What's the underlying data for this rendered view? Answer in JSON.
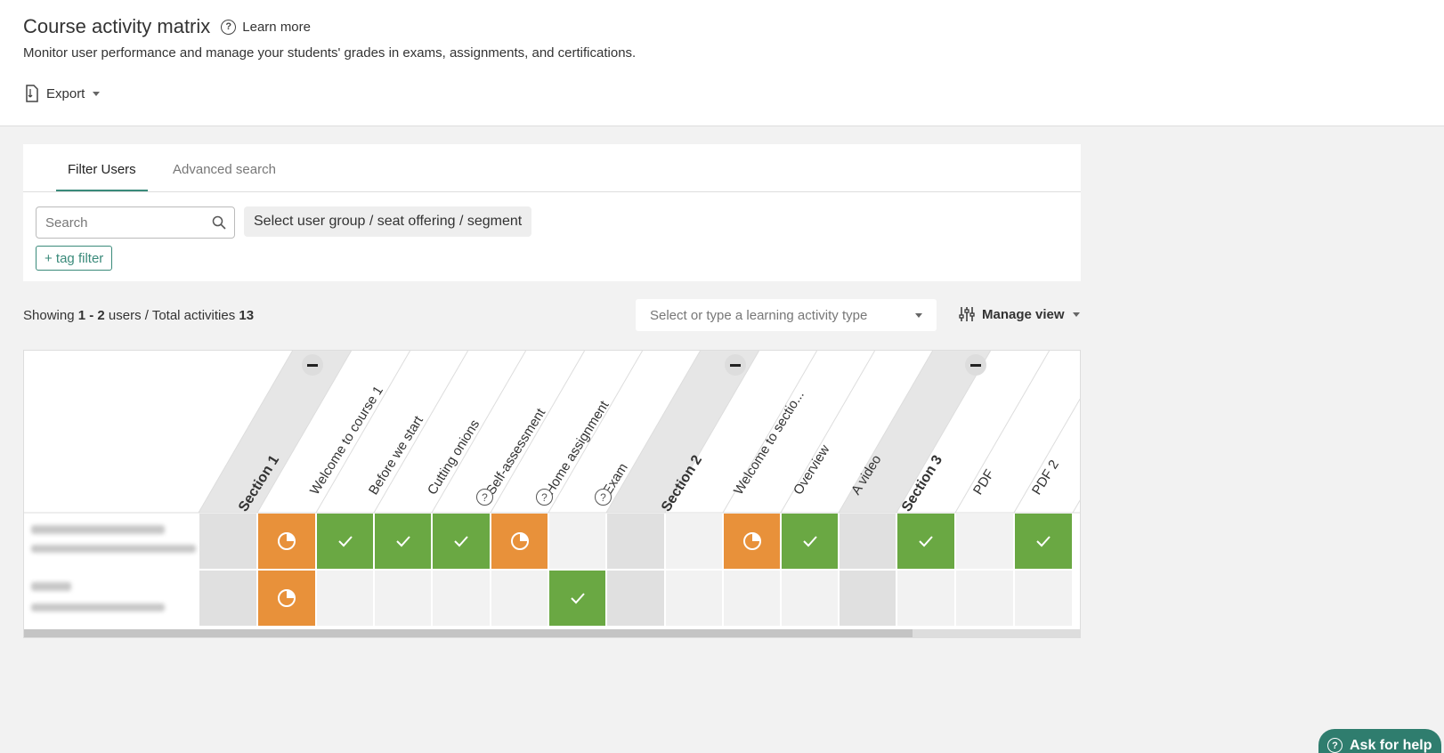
{
  "header": {
    "title": "Course activity matrix",
    "learn_more": "Learn more",
    "subtitle": "Monitor user performance and manage your students' grades in exams, assignments, and certifications.",
    "export_label": "Export"
  },
  "filter": {
    "tabs": [
      "Filter Users",
      "Advanced search"
    ],
    "active_tab": "Filter Users",
    "search_placeholder": "Search",
    "group_select": "Select user group / seat offering / segment",
    "tag_filter": "+ tag filter"
  },
  "summary": {
    "showing_prefix": "Showing",
    "range": "1 - 2",
    "users_label": "users",
    "total_label": "/ Total activities",
    "total": "13"
  },
  "toolbar": {
    "activity_type_placeholder": "Select or type a learning activity type",
    "manage_view": "Manage view"
  },
  "matrix": {
    "sections": [
      "Section 1",
      "Section 2",
      "Section 3"
    ],
    "activity_labels": {
      "a1": "Welcome to course 1",
      "a2": "Before we start",
      "a3": "Cutting onions",
      "a4": "Self-assessment",
      "a5": "Home assignment",
      "a6": "Exam",
      "b1": "Welcome to sectio...",
      "b2": "Overview",
      "b3": "A video",
      "c1": "PDF",
      "c2": "PDF 2"
    },
    "help_icon_text": "?",
    "status_legend": {
      "partial": "#e8913a",
      "complete": "#6aa843",
      "empty": "#f2f2f2",
      "section": "#e0e0e0"
    },
    "rows": [
      {
        "user": "blurred-user-1",
        "statuses": [
          "section",
          "partial",
          "complete",
          "complete",
          "complete",
          "partial",
          "empty",
          "section",
          "empty",
          "partial",
          "complete",
          "section",
          "complete",
          "empty",
          "complete"
        ]
      },
      {
        "user": "blurred-user-2",
        "statuses": [
          "section",
          "partial",
          "empty",
          "empty",
          "empty",
          "empty",
          "complete",
          "section",
          "empty",
          "empty",
          "empty",
          "section",
          "empty",
          "empty",
          "empty"
        ]
      }
    ]
  },
  "help_widget": {
    "label": "Ask for help"
  }
}
